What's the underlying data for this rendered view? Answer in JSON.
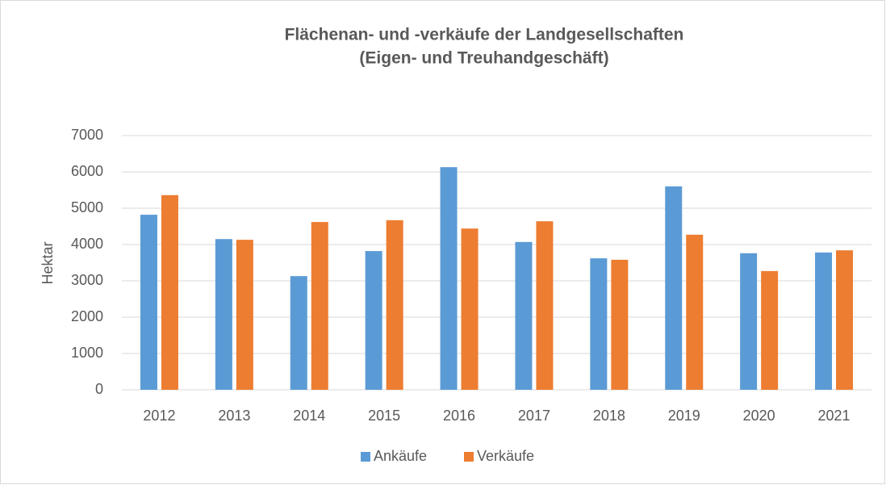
{
  "chart_data": {
    "type": "bar",
    "title": [
      "Flächenan- und -verkäufe der Landgesellschaften",
      "(Eigen- und Treuhandgeschäft)"
    ],
    "y_label": "Hektar",
    "categories": [
      "2012",
      "2013",
      "2014",
      "2015",
      "2016",
      "2017",
      "2018",
      "2019",
      "2020",
      "2021"
    ],
    "series": [
      {
        "name": "Ankäufe",
        "color": "#5b9bd5",
        "values": [
          4820,
          4150,
          3130,
          3820,
          6130,
          4070,
          3620,
          5600,
          3760,
          3780
        ]
      },
      {
        "name": "Verkäufe",
        "color": "#ed7d31",
        "values": [
          5360,
          4130,
          4620,
          4670,
          4440,
          4640,
          3580,
          4270,
          3270,
          3840
        ]
      }
    ],
    "ylim": [
      0,
      7000
    ],
    "yticks": [
      0,
      1000,
      2000,
      3000,
      4000,
      5000,
      6000,
      7000
    ],
    "grid": true,
    "legend": "bottom"
  }
}
